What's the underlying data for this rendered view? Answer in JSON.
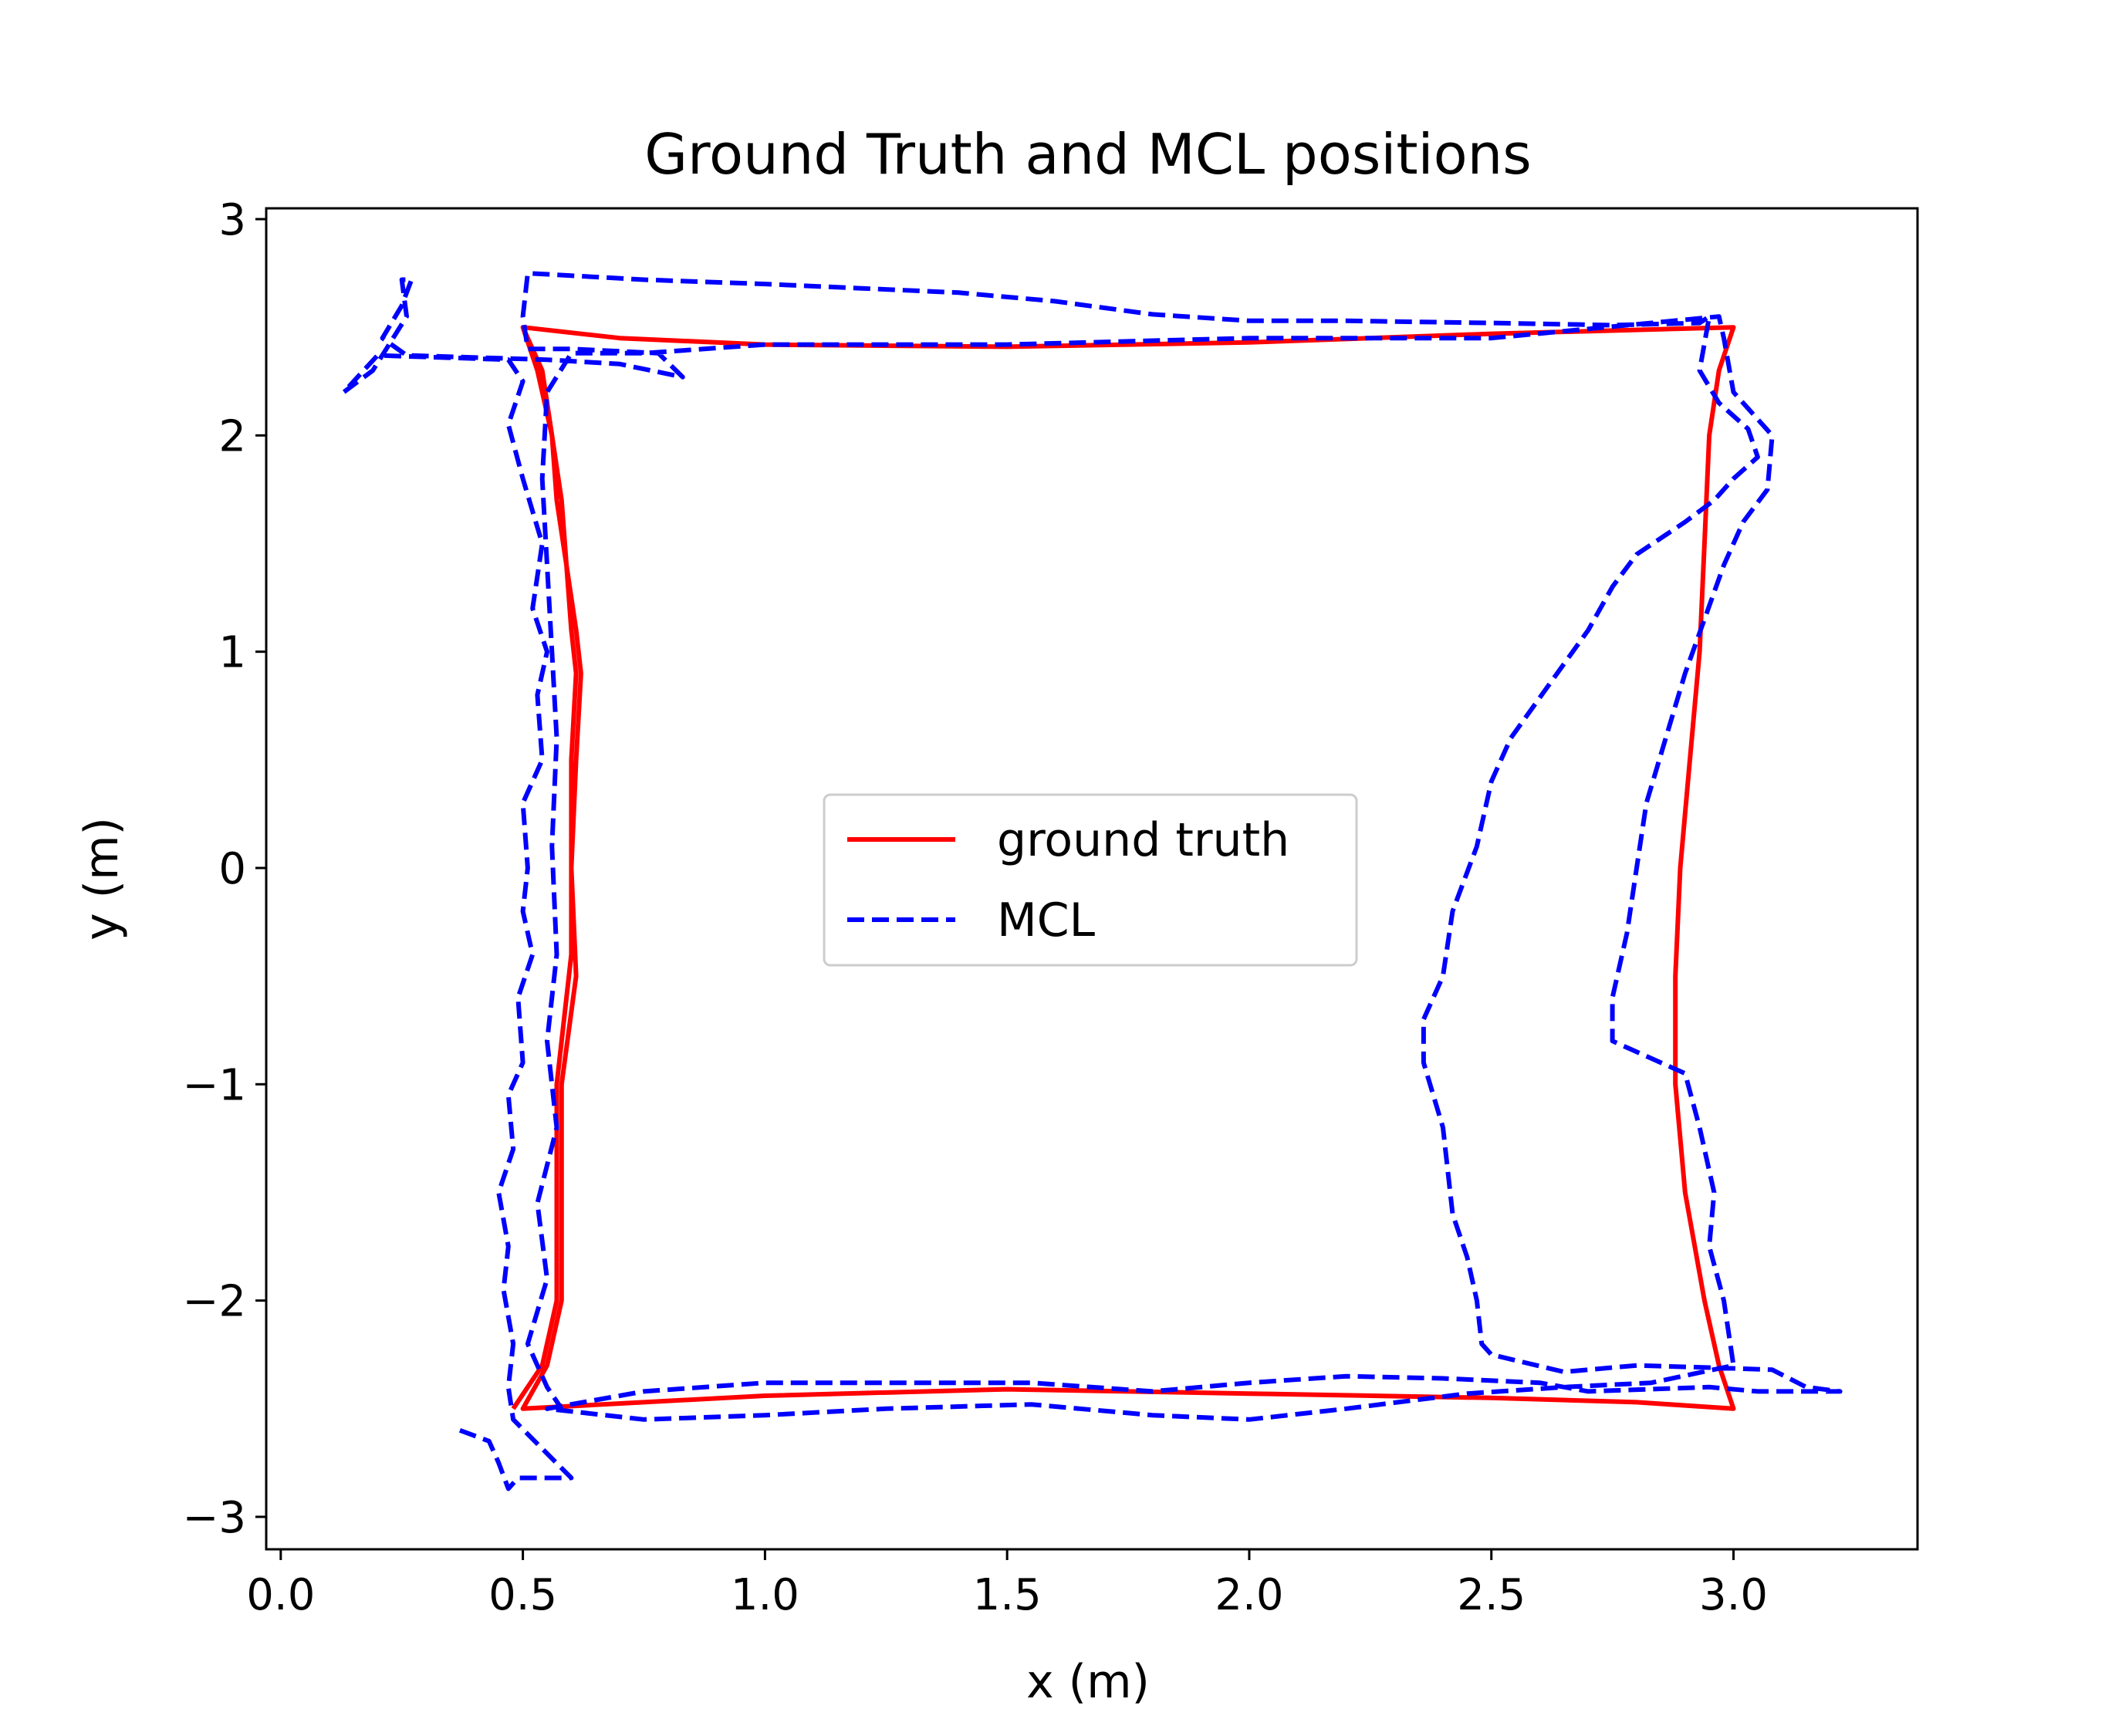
{
  "chart_data": {
    "type": "line",
    "title": "Ground Truth and MCL positions",
    "xlabel": "x (m)",
    "ylabel": "y (m)",
    "xlim": [
      -0.03,
      3.38
    ],
    "ylim": [
      -3.15,
      3.05
    ],
    "xticks": [
      0.0,
      0.5,
      1.0,
      1.5,
      2.0,
      2.5,
      3.0
    ],
    "xtick_labels": [
      "0.0",
      "0.5",
      "1.0",
      "1.5",
      "2.0",
      "2.5",
      "3.0"
    ],
    "yticks": [
      -3,
      -2,
      -1,
      0,
      1,
      2,
      3
    ],
    "ytick_labels": [
      "−3",
      "−2",
      "−1",
      "0",
      "1",
      "2",
      "3"
    ],
    "grid": false,
    "legend": {
      "position": "center",
      "entries": [
        "ground truth",
        "MCL"
      ]
    },
    "series": [
      {
        "name": "ground truth",
        "color": "#ff0000",
        "style": "solid",
        "points": [
          [
            0.5,
            2.5
          ],
          [
            0.54,
            2.3
          ],
          [
            0.56,
            2.0
          ],
          [
            0.58,
            1.7
          ],
          [
            0.59,
            1.4
          ],
          [
            0.61,
            1.1
          ],
          [
            0.62,
            0.9
          ],
          [
            0.61,
            0.5
          ],
          [
            0.6,
            0.0
          ],
          [
            0.61,
            -0.5
          ],
          [
            0.58,
            -1.0
          ],
          [
            0.58,
            -1.5
          ],
          [
            0.58,
            -2.0
          ],
          [
            0.55,
            -2.3
          ],
          [
            0.5,
            -2.5
          ],
          [
            1.0,
            -2.44
          ],
          [
            1.5,
            -2.41
          ],
          [
            2.0,
            -2.43
          ],
          [
            2.5,
            -2.45
          ],
          [
            2.8,
            -2.47
          ],
          [
            3.0,
            -2.5
          ],
          [
            2.97,
            -2.3
          ],
          [
            2.94,
            -2.0
          ],
          [
            2.9,
            -1.5
          ],
          [
            2.88,
            -1.0
          ],
          [
            2.88,
            -0.5
          ],
          [
            2.89,
            0.0
          ],
          [
            2.91,
            0.5
          ],
          [
            2.93,
            1.0
          ],
          [
            2.94,
            1.5
          ],
          [
            2.95,
            2.0
          ],
          [
            2.97,
            2.3
          ],
          [
            3.0,
            2.5
          ],
          [
            2.5,
            2.47
          ],
          [
            2.0,
            2.43
          ],
          [
            1.5,
            2.41
          ],
          [
            1.0,
            2.42
          ],
          [
            0.7,
            2.45
          ],
          [
            0.5,
            2.5
          ],
          [
            0.53,
            2.3
          ],
          [
            0.56,
            2.0
          ],
          [
            0.57,
            1.7
          ],
          [
            0.59,
            1.4
          ],
          [
            0.6,
            1.1
          ],
          [
            0.61,
            0.9
          ],
          [
            0.6,
            0.5
          ],
          [
            0.6,
            0.0
          ],
          [
            0.6,
            -0.4
          ],
          [
            0.57,
            -1.0
          ],
          [
            0.57,
            -1.5
          ],
          [
            0.57,
            -2.0
          ],
          [
            0.54,
            -2.3
          ],
          [
            0.48,
            -2.5
          ]
        ]
      },
      {
        "name": "MCL",
        "color": "#0000ff",
        "style": "dashed",
        "points": [
          [
            0.37,
            -2.6
          ],
          [
            0.43,
            -2.65
          ],
          [
            0.45,
            -2.75
          ],
          [
            0.47,
            -2.87
          ],
          [
            0.49,
            -2.82
          ],
          [
            0.6,
            -2.82
          ],
          [
            0.48,
            -2.55
          ],
          [
            0.47,
            -2.4
          ],
          [
            0.48,
            -2.2
          ],
          [
            0.46,
            -1.95
          ],
          [
            0.47,
            -1.75
          ],
          [
            0.45,
            -1.5
          ],
          [
            0.48,
            -1.3
          ],
          [
            0.47,
            -1.05
          ],
          [
            0.5,
            -0.9
          ],
          [
            0.49,
            -0.6
          ],
          [
            0.52,
            -0.4
          ],
          [
            0.5,
            -0.2
          ],
          [
            0.51,
            0.0
          ],
          [
            0.5,
            0.3
          ],
          [
            0.54,
            0.5
          ],
          [
            0.53,
            0.8
          ],
          [
            0.55,
            1.0
          ],
          [
            0.52,
            1.2
          ],
          [
            0.54,
            1.5
          ],
          [
            0.5,
            1.8
          ],
          [
            0.47,
            2.05
          ],
          [
            0.5,
            2.25
          ],
          [
            0.47,
            2.35
          ],
          [
            0.2,
            2.37
          ],
          [
            0.13,
            2.2
          ],
          [
            0.19,
            2.3
          ],
          [
            0.26,
            2.55
          ],
          [
            0.25,
            2.72
          ],
          [
            0.27,
            2.72
          ],
          [
            0.25,
            2.6
          ],
          [
            0.21,
            2.45
          ],
          [
            0.26,
            2.37
          ],
          [
            0.55,
            2.35
          ],
          [
            0.7,
            2.33
          ],
          [
            0.83,
            2.27
          ],
          [
            0.78,
            2.38
          ],
          [
            0.6,
            2.4
          ],
          [
            0.51,
            2.4
          ],
          [
            0.5,
            2.55
          ],
          [
            0.51,
            2.75
          ],
          [
            0.75,
            2.72
          ],
          [
            1.0,
            2.7
          ],
          [
            1.2,
            2.68
          ],
          [
            1.4,
            2.66
          ],
          [
            1.6,
            2.62
          ],
          [
            1.8,
            2.56
          ],
          [
            2.0,
            2.53
          ],
          [
            2.2,
            2.53
          ],
          [
            2.5,
            2.52
          ],
          [
            2.75,
            2.51
          ],
          [
            2.93,
            2.52
          ],
          [
            2.95,
            2.55
          ],
          [
            2.93,
            2.3
          ],
          [
            2.97,
            2.15
          ],
          [
            3.03,
            2.03
          ],
          [
            3.05,
            1.9
          ],
          [
            3.0,
            1.8
          ],
          [
            2.96,
            1.7
          ],
          [
            2.9,
            1.6
          ],
          [
            2.8,
            1.45
          ],
          [
            2.75,
            1.3
          ],
          [
            2.7,
            1.1
          ],
          [
            2.62,
            0.85
          ],
          [
            2.54,
            0.6
          ],
          [
            2.5,
            0.4
          ],
          [
            2.47,
            0.1
          ],
          [
            2.42,
            -0.2
          ],
          [
            2.4,
            -0.5
          ],
          [
            2.36,
            -0.7
          ],
          [
            2.36,
            -0.9
          ],
          [
            2.4,
            -1.2
          ],
          [
            2.42,
            -1.6
          ],
          [
            2.45,
            -1.8
          ],
          [
            2.47,
            -2.0
          ],
          [
            2.48,
            -2.2
          ],
          [
            2.5,
            -2.25
          ],
          [
            2.65,
            -2.33
          ],
          [
            2.8,
            -2.3
          ],
          [
            2.95,
            -2.31
          ],
          [
            3.08,
            -2.32
          ],
          [
            3.15,
            -2.4
          ],
          [
            3.22,
            -2.42
          ],
          [
            3.05,
            -2.42
          ],
          [
            2.95,
            -2.4
          ],
          [
            2.7,
            -2.42
          ],
          [
            2.6,
            -2.38
          ],
          [
            2.4,
            -2.36
          ],
          [
            2.2,
            -2.35
          ],
          [
            2.0,
            -2.38
          ],
          [
            1.8,
            -2.42
          ],
          [
            1.55,
            -2.38
          ],
          [
            1.3,
            -2.38
          ],
          [
            1.0,
            -2.38
          ],
          [
            0.75,
            -2.42
          ],
          [
            0.55,
            -2.5
          ],
          [
            0.75,
            -2.55
          ],
          [
            1.0,
            -2.53
          ],
          [
            1.25,
            -2.5
          ],
          [
            1.55,
            -2.48
          ],
          [
            1.8,
            -2.53
          ],
          [
            2.0,
            -2.55
          ],
          [
            2.2,
            -2.5
          ],
          [
            2.45,
            -2.43
          ],
          [
            2.65,
            -2.4
          ],
          [
            2.83,
            -2.38
          ],
          [
            3.0,
            -2.3
          ],
          [
            2.98,
            -2.0
          ],
          [
            2.95,
            -1.75
          ],
          [
            2.96,
            -1.5
          ],
          [
            2.93,
            -1.2
          ],
          [
            2.9,
            -0.95
          ],
          [
            2.8,
            -0.85
          ],
          [
            2.75,
            -0.8
          ],
          [
            2.75,
            -0.6
          ],
          [
            2.78,
            -0.3
          ],
          [
            2.8,
            0.0
          ],
          [
            2.82,
            0.3
          ],
          [
            2.86,
            0.6
          ],
          [
            2.9,
            0.9
          ],
          [
            2.94,
            1.15
          ],
          [
            2.98,
            1.4
          ],
          [
            3.02,
            1.6
          ],
          [
            3.07,
            1.75
          ],
          [
            3.08,
            2.0
          ],
          [
            3.0,
            2.2
          ],
          [
            2.98,
            2.45
          ],
          [
            2.97,
            2.55
          ],
          [
            2.5,
            2.45
          ],
          [
            2.0,
            2.45
          ],
          [
            1.5,
            2.42
          ],
          [
            1.0,
            2.42
          ],
          [
            0.75,
            2.38
          ],
          [
            0.6,
            2.38
          ],
          [
            0.55,
            2.2
          ],
          [
            0.54,
            1.8
          ],
          [
            0.55,
            1.4
          ],
          [
            0.56,
            1.0
          ],
          [
            0.57,
            0.6
          ],
          [
            0.56,
            0.1
          ],
          [
            0.57,
            -0.4
          ],
          [
            0.55,
            -0.8
          ],
          [
            0.57,
            -1.2
          ],
          [
            0.53,
            -1.55
          ],
          [
            0.55,
            -1.9
          ],
          [
            0.51,
            -2.2
          ],
          [
            0.55,
            -2.4
          ],
          [
            0.58,
            -2.5
          ]
        ]
      }
    ]
  }
}
